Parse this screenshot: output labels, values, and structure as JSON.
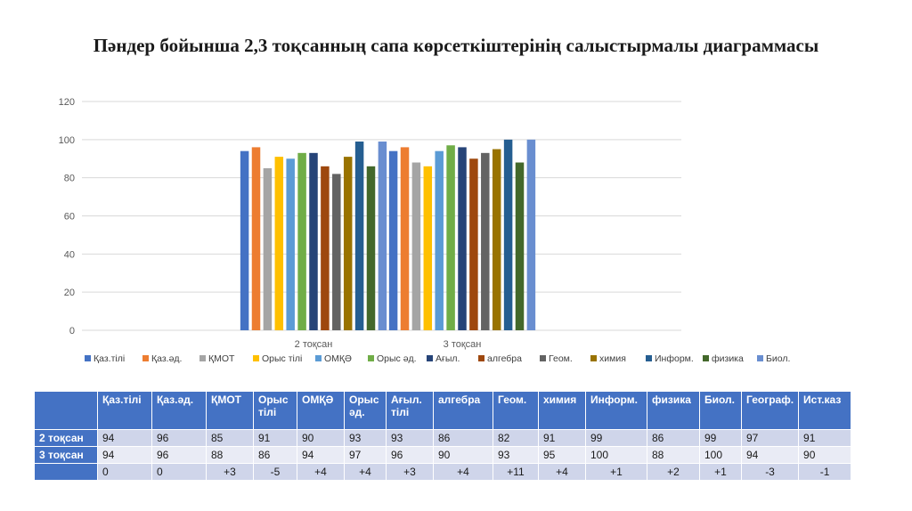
{
  "slide": {
    "title": "Пәндер бойынша 2,3  тоқсанның сапа көрсеткіштерінің салыстырмалы диаграммасы"
  },
  "chart_data": {
    "type": "bar",
    "categories": [
      "2 тоқсан",
      "3 тоқсан"
    ],
    "ylim": [
      0,
      120
    ],
    "yticks": [
      0,
      20,
      40,
      60,
      80,
      100,
      120
    ],
    "grid": true,
    "legend_position": "bottom",
    "series": [
      {
        "name": "Қаз.тілі",
        "color": "#4472c4",
        "values": [
          94,
          94
        ]
      },
      {
        "name": "Қаз.әд.",
        "color": "#ed7d31",
        "values": [
          96,
          96
        ]
      },
      {
        "name": "ҚМОТ",
        "color": "#a5a5a5",
        "values": [
          85,
          88
        ]
      },
      {
        "name": "Орыс тілі",
        "color": "#ffc000",
        "values": [
          91,
          86
        ]
      },
      {
        "name": "ОМҚӘ",
        "color": "#5b9bd5",
        "values": [
          90,
          94
        ]
      },
      {
        "name": "Орыс әд.",
        "color": "#70ad47",
        "values": [
          93,
          97
        ]
      },
      {
        "name": "Ағыл.",
        "color": "#264478",
        "values": [
          93,
          96
        ]
      },
      {
        "name": "алгебра",
        "color": "#9e480e",
        "values": [
          86,
          90
        ]
      },
      {
        "name": "Геом.",
        "color": "#636363",
        "values": [
          82,
          93
        ]
      },
      {
        "name": "химия",
        "color": "#997300",
        "values": [
          91,
          95
        ]
      },
      {
        "name": "Информ.",
        "color": "#255e91",
        "values": [
          99,
          100
        ]
      },
      {
        "name": "физика",
        "color": "#43682b",
        "values": [
          86,
          88
        ]
      },
      {
        "name": "Биол.",
        "color": "#698ed0",
        "values": [
          99,
          100
        ]
      }
    ]
  },
  "table": {
    "corner": "",
    "headers": [
      "Қаз.тілі",
      "Қаз.әд.",
      "ҚМОТ",
      "Орыс тілі",
      "ОМҚӘ",
      "Орыс әд.",
      "Ағыл. тілі",
      "алгебра",
      "Геом.",
      "химия",
      "Информ.",
      "физика",
      "Биол.",
      "Географ.",
      "Ист.каз"
    ],
    "rows": [
      {
        "label": "2 тоқсан",
        "cells": [
          "94",
          "96",
          "85",
          "91",
          "90",
          "93",
          "93",
          "86",
          "82",
          "91",
          "99",
          "86",
          "99",
          "97",
          "91"
        ]
      },
      {
        "label": "3 тоқсан",
        "cells": [
          "94",
          "96",
          "88",
          "86",
          "94",
          "97",
          "96",
          "90",
          "93",
          "95",
          "100",
          "88",
          "100",
          "94",
          "90"
        ]
      },
      {
        "label": "",
        "cells": [
          "0",
          "0",
          "+3",
          "-5",
          "+4",
          "+4",
          "+3",
          "+4",
          "+11",
          "+4",
          "+1",
          "+2",
          "+1",
          "-3",
          "-1"
        ]
      }
    ]
  }
}
